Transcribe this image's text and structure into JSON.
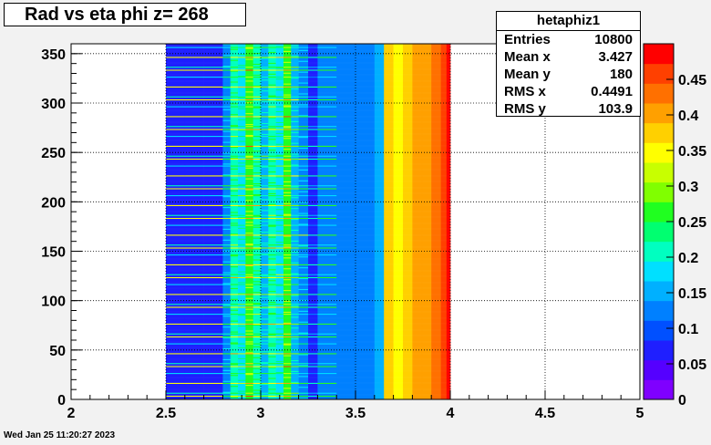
{
  "page": {
    "timestamp": "Wed Jan 25 11:20:27 2023"
  },
  "chart_data": {
    "type": "heatmap",
    "title": "Rad vs eta phi z= 268",
    "xlabel": "",
    "ylabel": "",
    "xlim": [
      2,
      5
    ],
    "ylim": [
      0,
      360
    ],
    "x_ticks": [
      "2",
      "2.5",
      "3",
      "3.5",
      "4",
      "4.5",
      "5"
    ],
    "y_ticks": [
      "0",
      "50",
      "100",
      "150",
      "200",
      "250",
      "300",
      "350"
    ],
    "z_range": [
      0,
      0.5
    ],
    "z_ticks": [
      "0",
      "0.05",
      "0.1",
      "0.15",
      "0.2",
      "0.25",
      "0.3",
      "0.35",
      "0.4",
      "0.45"
    ],
    "grid": true,
    "palette": [
      "#7f00ff",
      "#5500ff",
      "#1f1fff",
      "#0050ff",
      "#0080ff",
      "#00b0ff",
      "#00e0ff",
      "#00ffc0",
      "#00ff70",
      "#20ff20",
      "#80ff00",
      "#c8ff00",
      "#ffff00",
      "#ffd000",
      "#ffa000",
      "#ff7000",
      "#ff4000",
      "#ff0000"
    ],
    "bins": {
      "x_edges": [
        2.5,
        2.6,
        2.7,
        2.8,
        2.84,
        2.88,
        2.92,
        2.96,
        3.0,
        3.04,
        3.08,
        3.12,
        3.16,
        3.2,
        3.25,
        3.3,
        3.4,
        3.5,
        3.6,
        3.65,
        3.7,
        3.75,
        3.8,
        3.85,
        3.9,
        3.95,
        3.98,
        4.0
      ],
      "x_values": [
        0.06,
        0.06,
        0.07,
        0.13,
        0.2,
        0.17,
        0.25,
        0.2,
        0.15,
        0.2,
        0.18,
        0.25,
        0.15,
        0.13,
        0.08,
        0.12,
        0.12,
        0.12,
        0.14,
        0.37,
        0.35,
        0.38,
        0.4,
        0.41,
        0.43,
        0.45,
        0.49
      ],
      "y_period": 30,
      "y_stripes": [
        {
          "y": 3,
          "boost": 0.2
        },
        {
          "y": 6,
          "boost": 0.1
        },
        {
          "y": 16,
          "boost": 0.2
        },
        {
          "y": 26,
          "boost": 0.08
        }
      ]
    }
  },
  "stats": {
    "name": "hetaphiz1",
    "rows": [
      {
        "label": "Entries",
        "value": "10800"
      },
      {
        "label": "Mean x",
        "value": "3.427"
      },
      {
        "label": "Mean y",
        "value": "180"
      },
      {
        "label": "RMS x",
        "value": "0.4491"
      },
      {
        "label": "RMS y",
        "value": "103.9"
      }
    ]
  }
}
